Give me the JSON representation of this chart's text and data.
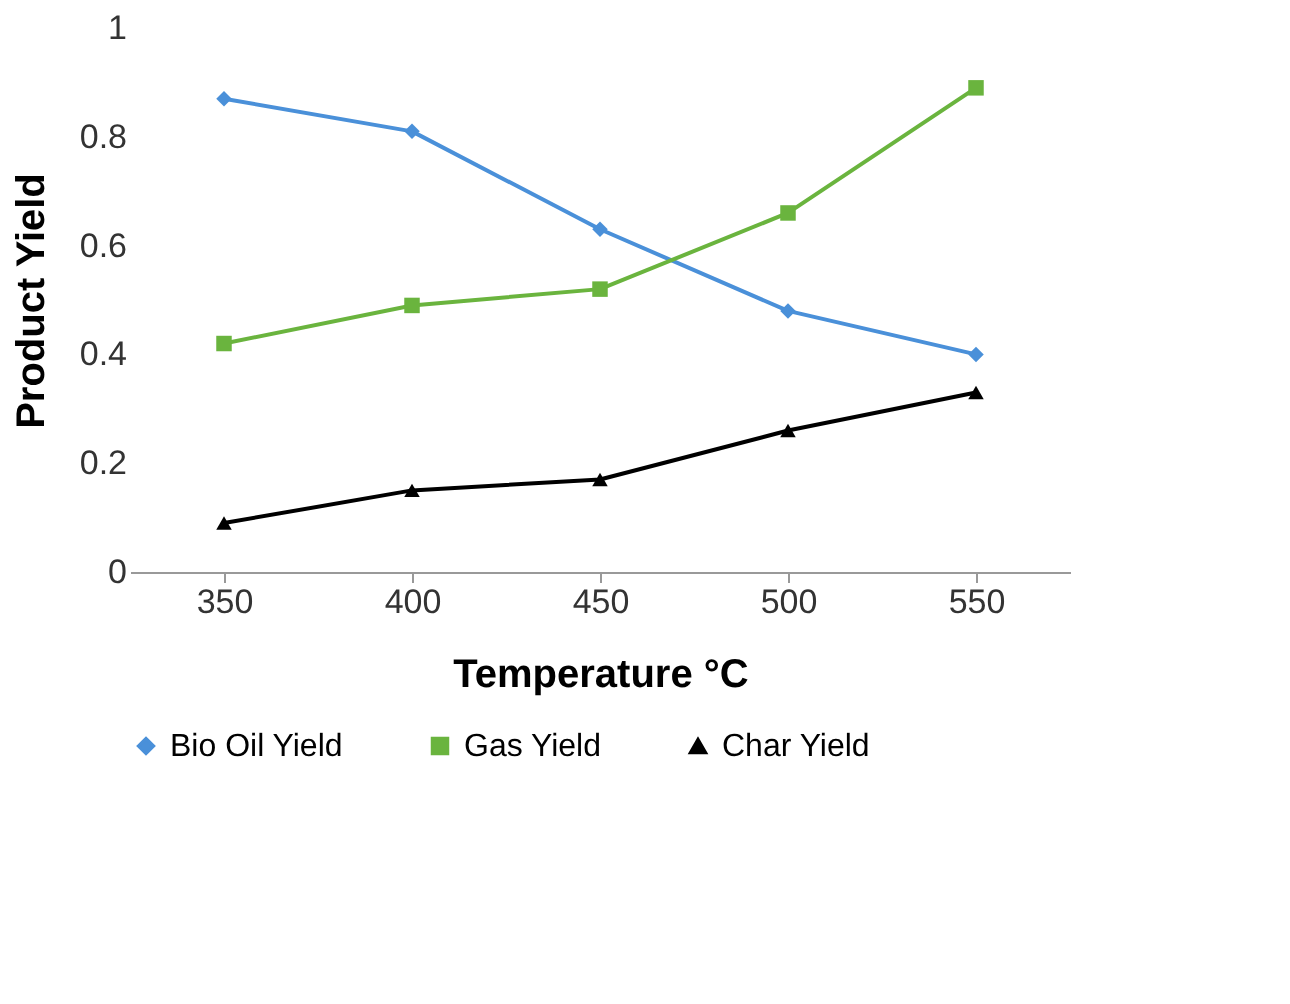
{
  "chart_data": {
    "type": "line",
    "xlabel": "Temperature °C",
    "ylabel": "Product Yield",
    "categories": [
      "350",
      "400",
      "450",
      "500",
      "550"
    ],
    "series": [
      {
        "name": "Bio Oil Yield",
        "color": "#4a90d9",
        "marker": "diamond",
        "values": [
          0.87,
          0.81,
          0.63,
          0.48,
          0.4
        ]
      },
      {
        "name": "Gas Yield",
        "color": "#6ab43e",
        "marker": "square",
        "values": [
          0.42,
          0.49,
          0.52,
          0.66,
          0.89
        ]
      },
      {
        "name": "Char Yield",
        "color": "#000000",
        "marker": "triangle",
        "values": [
          0.09,
          0.15,
          0.17,
          0.26,
          0.33
        ]
      }
    ],
    "ylim": [
      0,
      1
    ],
    "yticks": [
      0,
      0.2,
      0.4,
      0.6,
      0.8,
      1
    ],
    "grid": false,
    "legend": "bottom",
    "line_style": "solid"
  }
}
